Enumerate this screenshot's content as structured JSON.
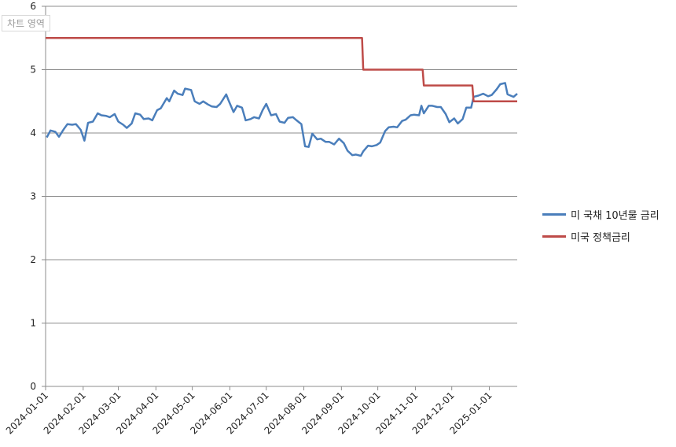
{
  "chart_area_label": "차트 영역",
  "chart_data": {
    "type": "line",
    "title": "",
    "xlabel": "",
    "ylabel": "",
    "ylim": [
      0,
      6
    ],
    "yticks": [
      0,
      1,
      2,
      3,
      4,
      5,
      6
    ],
    "xlim": [
      "2024-01-01",
      "2025-01-24"
    ],
    "xticks": [
      "2024-01-01",
      "2024-02-01",
      "2024-03-01",
      "2024-04-01",
      "2024-05-01",
      "2024-06-01",
      "2024-07-01",
      "2024-08-01",
      "2024-09-01",
      "2024-10-01",
      "2024-11-01",
      "2024-12-01",
      "2025-01-01"
    ],
    "grid": "horizontal",
    "legend_position": "right",
    "series": [
      {
        "name": "미 국채 10년물 금리",
        "color": "#4a7ebb",
        "points": [
          [
            "2024-01-02",
            3.93
          ],
          [
            "2024-01-05",
            4.04
          ],
          [
            "2024-01-09",
            4.02
          ],
          [
            "2024-01-12",
            3.94
          ],
          [
            "2024-01-16",
            4.06
          ],
          [
            "2024-01-19",
            4.14
          ],
          [
            "2024-01-23",
            4.13
          ],
          [
            "2024-01-26",
            4.14
          ],
          [
            "2024-01-30",
            4.05
          ],
          [
            "2024-02-02",
            3.88
          ],
          [
            "2024-02-05",
            4.16
          ],
          [
            "2024-02-09",
            4.18
          ],
          [
            "2024-02-13",
            4.31
          ],
          [
            "2024-02-16",
            4.28
          ],
          [
            "2024-02-20",
            4.27
          ],
          [
            "2024-02-23",
            4.25
          ],
          [
            "2024-02-27",
            4.3
          ],
          [
            "2024-03-01",
            4.18
          ],
          [
            "2024-03-05",
            4.13
          ],
          [
            "2024-03-08",
            4.08
          ],
          [
            "2024-03-12",
            4.15
          ],
          [
            "2024-03-15",
            4.31
          ],
          [
            "2024-03-19",
            4.29
          ],
          [
            "2024-03-22",
            4.22
          ],
          [
            "2024-03-26",
            4.23
          ],
          [
            "2024-03-29",
            4.2
          ],
          [
            "2024-04-02",
            4.36
          ],
          [
            "2024-04-05",
            4.39
          ],
          [
            "2024-04-10",
            4.55
          ],
          [
            "2024-04-12",
            4.5
          ],
          [
            "2024-04-16",
            4.67
          ],
          [
            "2024-04-19",
            4.62
          ],
          [
            "2024-04-23",
            4.6
          ],
          [
            "2024-04-25",
            4.7
          ],
          [
            "2024-04-30",
            4.68
          ],
          [
            "2024-05-03",
            4.5
          ],
          [
            "2024-05-07",
            4.46
          ],
          [
            "2024-05-10",
            4.5
          ],
          [
            "2024-05-14",
            4.45
          ],
          [
            "2024-05-17",
            4.42
          ],
          [
            "2024-05-21",
            4.41
          ],
          [
            "2024-05-24",
            4.46
          ],
          [
            "2024-05-29",
            4.61
          ],
          [
            "2024-05-31",
            4.51
          ],
          [
            "2024-06-04",
            4.33
          ],
          [
            "2024-06-07",
            4.43
          ],
          [
            "2024-06-11",
            4.4
          ],
          [
            "2024-06-14",
            4.2
          ],
          [
            "2024-06-18",
            4.22
          ],
          [
            "2024-06-21",
            4.25
          ],
          [
            "2024-06-25",
            4.23
          ],
          [
            "2024-06-28",
            4.36
          ],
          [
            "2024-07-01",
            4.46
          ],
          [
            "2024-07-05",
            4.28
          ],
          [
            "2024-07-09",
            4.3
          ],
          [
            "2024-07-12",
            4.18
          ],
          [
            "2024-07-16",
            4.16
          ],
          [
            "2024-07-19",
            4.24
          ],
          [
            "2024-07-23",
            4.25
          ],
          [
            "2024-07-26",
            4.2
          ],
          [
            "2024-07-30",
            4.14
          ],
          [
            "2024-08-02",
            3.79
          ],
          [
            "2024-08-05",
            3.78
          ],
          [
            "2024-08-08",
            3.99
          ],
          [
            "2024-08-12",
            3.9
          ],
          [
            "2024-08-15",
            3.91
          ],
          [
            "2024-08-19",
            3.86
          ],
          [
            "2024-08-22",
            3.86
          ],
          [
            "2024-08-26",
            3.82
          ],
          [
            "2024-08-30",
            3.91
          ],
          [
            "2024-09-03",
            3.84
          ],
          [
            "2024-09-06",
            3.72
          ],
          [
            "2024-09-10",
            3.65
          ],
          [
            "2024-09-13",
            3.66
          ],
          [
            "2024-09-17",
            3.64
          ],
          [
            "2024-09-19",
            3.71
          ],
          [
            "2024-09-23",
            3.8
          ],
          [
            "2024-09-26",
            3.79
          ],
          [
            "2024-09-30",
            3.81
          ],
          [
            "2024-10-03",
            3.85
          ],
          [
            "2024-10-07",
            4.03
          ],
          [
            "2024-10-10",
            4.09
          ],
          [
            "2024-10-14",
            4.1
          ],
          [
            "2024-10-17",
            4.09
          ],
          [
            "2024-10-21",
            4.19
          ],
          [
            "2024-10-24",
            4.21
          ],
          [
            "2024-10-28",
            4.28
          ],
          [
            "2024-10-31",
            4.29
          ],
          [
            "2024-11-04",
            4.28
          ],
          [
            "2024-11-06",
            4.43
          ],
          [
            "2024-11-08",
            4.31
          ],
          [
            "2024-11-12",
            4.43
          ],
          [
            "2024-11-15",
            4.43
          ],
          [
            "2024-11-19",
            4.41
          ],
          [
            "2024-11-22",
            4.41
          ],
          [
            "2024-11-26",
            4.3
          ],
          [
            "2024-11-29",
            4.17
          ],
          [
            "2024-12-03",
            4.23
          ],
          [
            "2024-12-06",
            4.15
          ],
          [
            "2024-12-10",
            4.22
          ],
          [
            "2024-12-13",
            4.4
          ],
          [
            "2024-12-17",
            4.4
          ],
          [
            "2024-12-19",
            4.57
          ],
          [
            "2024-12-23",
            4.59
          ],
          [
            "2024-12-27",
            4.62
          ],
          [
            "2024-12-31",
            4.58
          ],
          [
            "2025-01-03",
            4.6
          ],
          [
            "2025-01-07",
            4.69
          ],
          [
            "2025-01-10",
            4.77
          ],
          [
            "2025-01-14",
            4.79
          ],
          [
            "2025-01-16",
            4.61
          ],
          [
            "2025-01-21",
            4.57
          ],
          [
            "2025-01-24",
            4.62
          ]
        ]
      },
      {
        "name": "미국 정책금리",
        "color": "#be4b48",
        "points": [
          [
            "2024-01-01",
            5.5
          ],
          [
            "2024-09-18",
            5.5
          ],
          [
            "2024-09-19",
            5.0
          ],
          [
            "2024-11-07",
            5.0
          ],
          [
            "2024-11-08",
            4.75
          ],
          [
            "2024-12-18",
            4.75
          ],
          [
            "2024-12-19",
            4.5
          ],
          [
            "2025-01-24",
            4.5
          ]
        ]
      }
    ]
  }
}
